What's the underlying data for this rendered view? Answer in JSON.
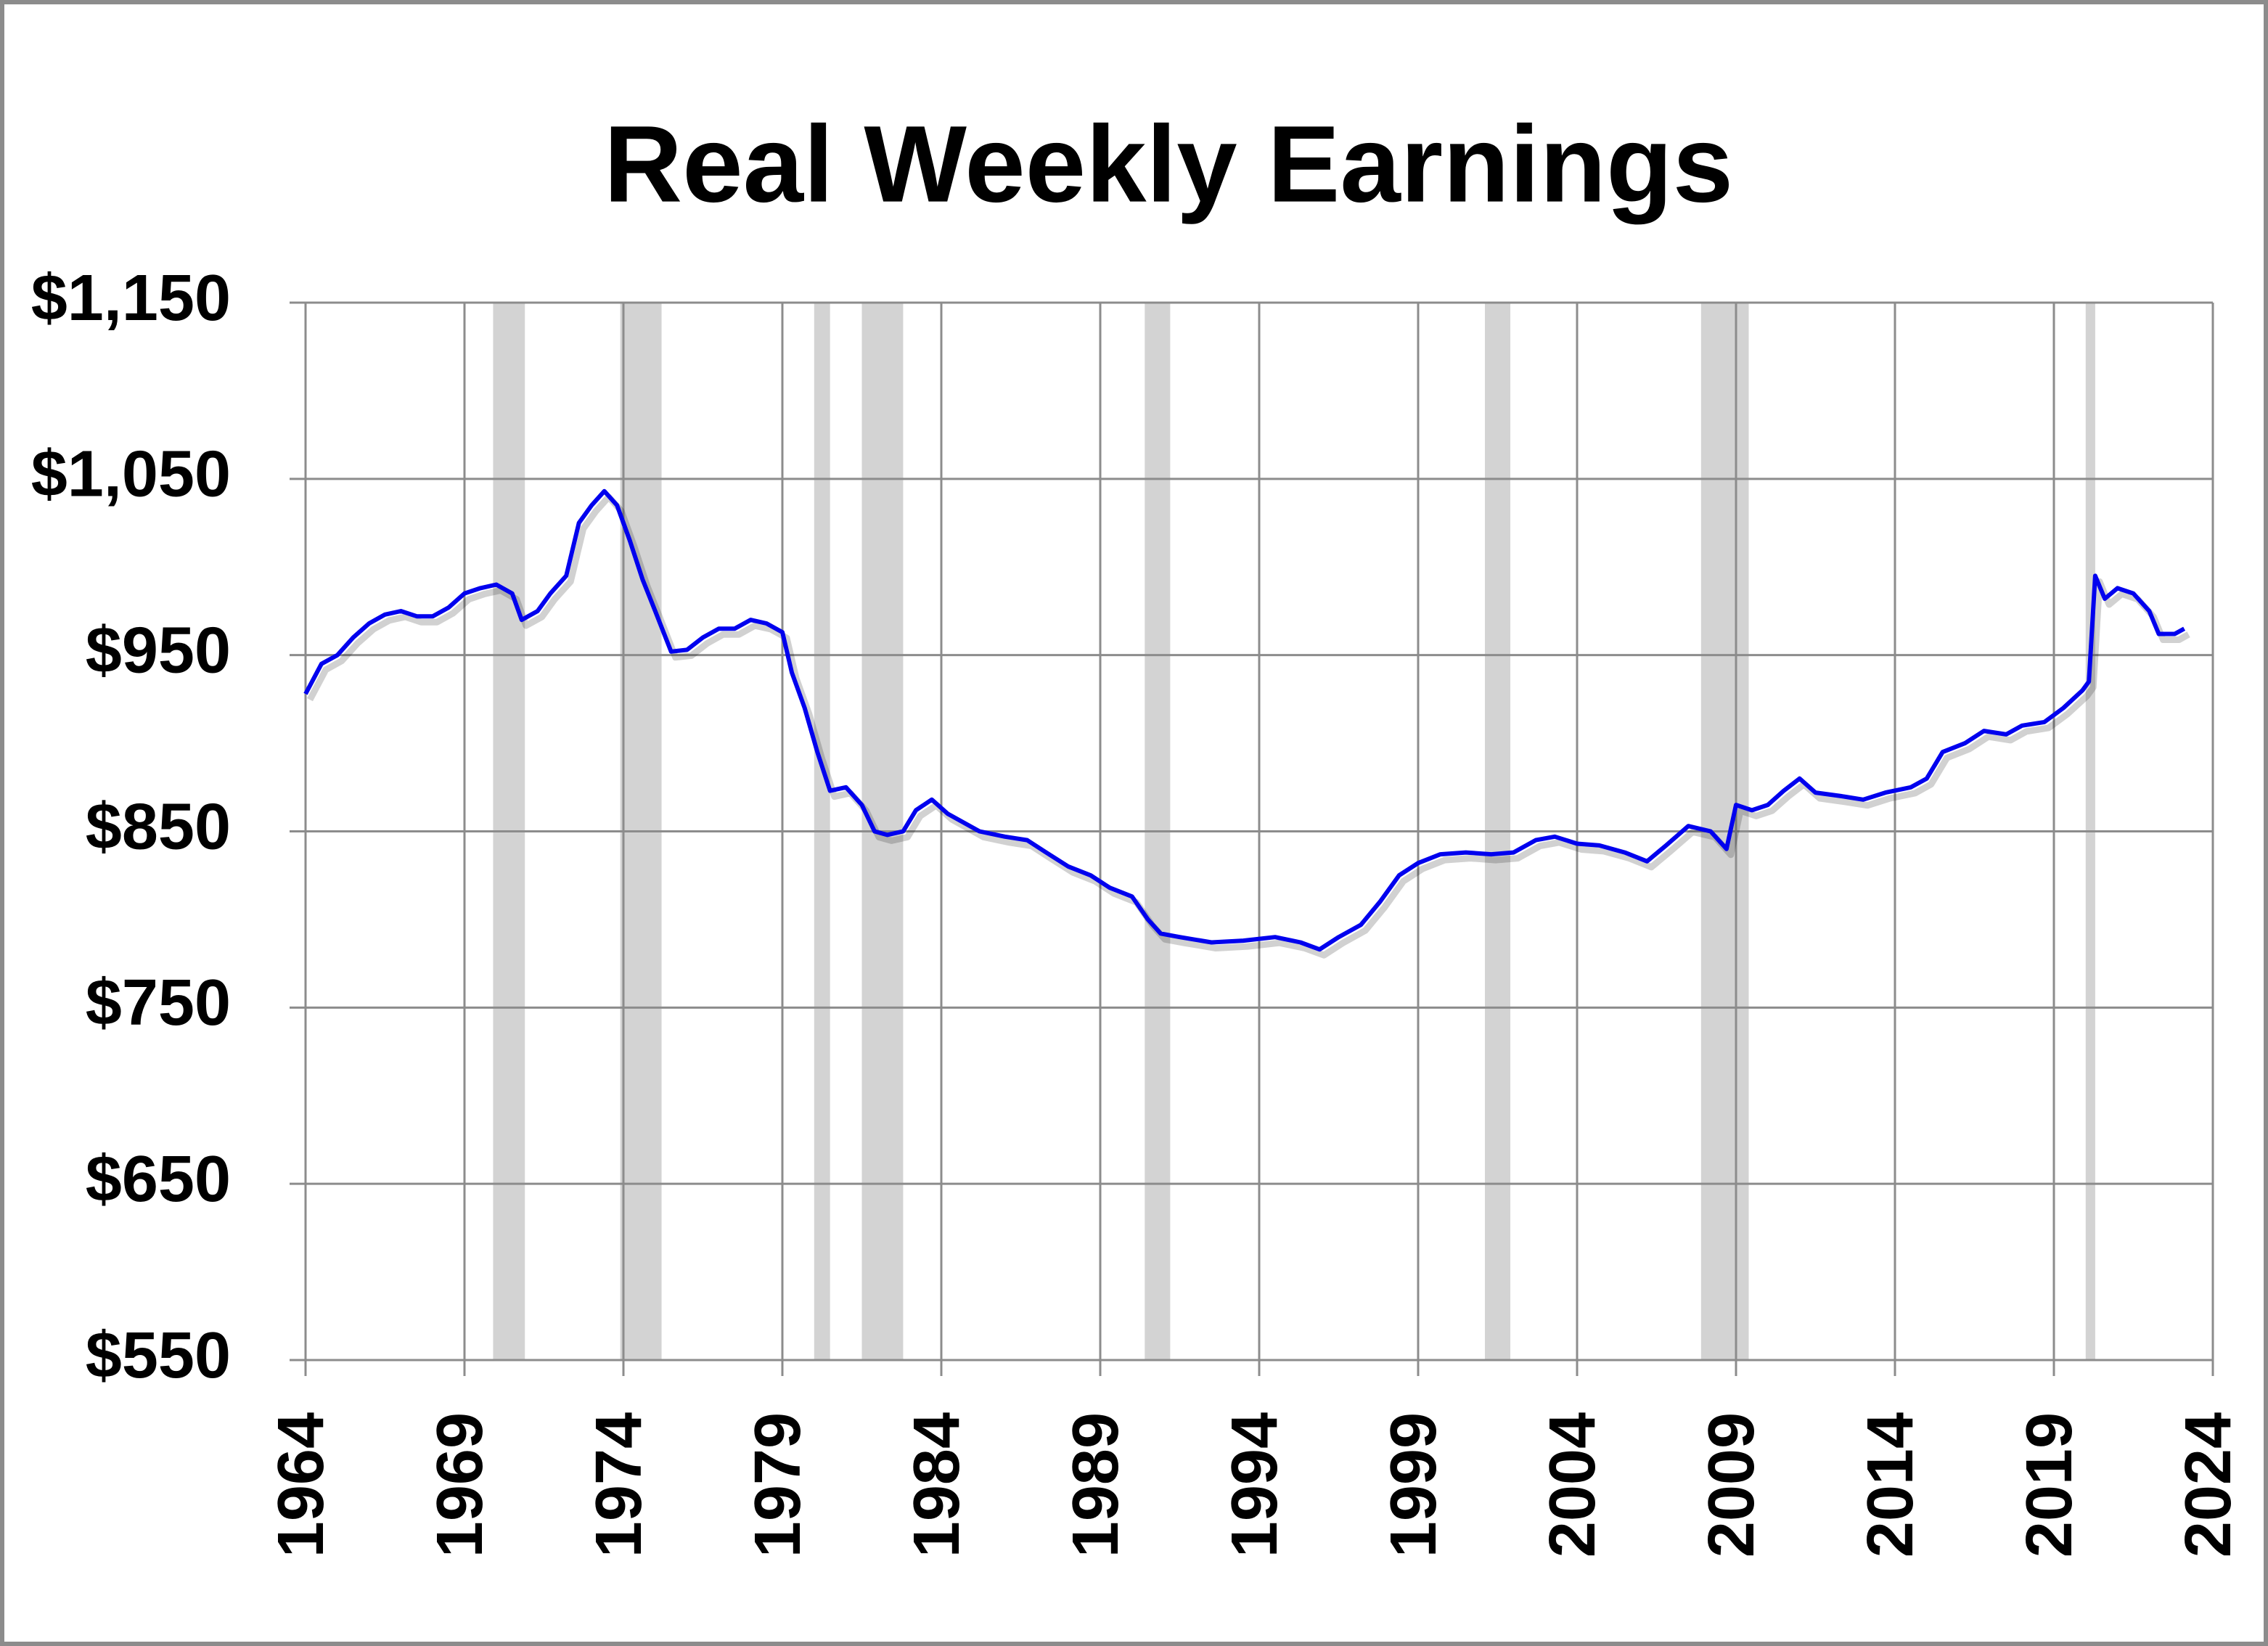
{
  "chart_data": {
    "type": "line",
    "title": "Real Weekly Earnings",
    "x": [
      1964.0,
      1964.5,
      1965.0,
      1965.5,
      1966.0,
      1966.5,
      1967.0,
      1967.5,
      1968.0,
      1968.5,
      1969.0,
      1969.5,
      1970.0,
      1970.5,
      1970.8,
      1971.3,
      1971.7,
      1972.2,
      1972.6,
      1973.0,
      1973.4,
      1973.8,
      1974.2,
      1974.6,
      1975.0,
      1975.5,
      1976.0,
      1976.5,
      1977.0,
      1977.5,
      1978.0,
      1978.5,
      1979.0,
      1979.3,
      1979.7,
      1980.1,
      1980.5,
      1981.0,
      1981.5,
      1981.9,
      1982.3,
      1982.8,
      1983.2,
      1983.7,
      1984.2,
      1984.7,
      1985.2,
      1986.0,
      1986.7,
      1987.3,
      1988.0,
      1988.7,
      1989.3,
      1990.0,
      1990.5,
      1990.9,
      1991.5,
      1992.5,
      1993.5,
      1994.5,
      1995.3,
      1995.9,
      1996.5,
      1997.2,
      1997.8,
      1998.4,
      1999.0,
      1999.7,
      2000.5,
      2001.3,
      2002.0,
      2002.7,
      2003.3,
      2004.0,
      2004.7,
      2005.5,
      2006.2,
      2006.8,
      2007.5,
      2008.2,
      2008.7,
      2009.0,
      2009.5,
      2010.0,
      2010.5,
      2011.0,
      2011.5,
      2012.3,
      2013.0,
      2013.7,
      2014.5,
      2015.0,
      2015.5,
      2016.2,
      2016.8,
      2017.5,
      2018.0,
      2018.7,
      2019.3,
      2019.9,
      2020.1,
      2020.3,
      2020.6,
      2021.0,
      2021.5,
      2022.0,
      2022.3,
      2022.8,
      2023.1
    ],
    "values": [
      928,
      945,
      950,
      960,
      968,
      973,
      975,
      972,
      972,
      977,
      985,
      988,
      990,
      985,
      970,
      975,
      985,
      995,
      1025,
      1035,
      1043,
      1035,
      1015,
      993,
      975,
      952,
      953,
      960,
      965,
      965,
      970,
      968,
      963,
      940,
      920,
      895,
      873,
      875,
      865,
      850,
      848,
      850,
      862,
      868,
      860,
      855,
      850,
      847,
      845,
      838,
      830,
      825,
      818,
      813,
      800,
      792,
      790,
      787,
      788,
      790,
      787,
      783,
      790,
      797,
      810,
      825,
      832,
      837,
      838,
      837,
      838,
      845,
      847,
      843,
      842,
      838,
      833,
      842,
      853,
      850,
      840,
      865,
      862,
      865,
      873,
      880,
      872,
      870,
      868,
      872,
      875,
      880,
      895,
      900,
      907,
      905,
      910,
      912,
      920,
      930,
      935,
      995,
      982,
      988,
      985,
      975,
      962,
      962,
      965
    ],
    "color": "#0000ee",
    "recessions": [
      [
        1969.9,
        1970.9
      ],
      [
        1973.9,
        1975.2
      ],
      [
        1980.0,
        1980.5
      ],
      [
        1981.5,
        1982.8
      ],
      [
        1990.4,
        1991.2
      ],
      [
        2001.1,
        2001.9
      ],
      [
        2007.9,
        2009.4
      ],
      [
        2020.0,
        2020.3
      ]
    ],
    "recession_color": "#d3d3d3",
    "xlim": [
      1964,
      2024
    ],
    "xticks": [
      1964,
      1969,
      1974,
      1979,
      1984,
      1989,
      1994,
      1999,
      2004,
      2009,
      2014,
      2019,
      2024
    ],
    "ylim": [
      550,
      1150
    ],
    "yticks": [
      {
        "value": 550,
        "label": "$550"
      },
      {
        "value": 650,
        "label": "$650"
      },
      {
        "value": 750,
        "label": "$750"
      },
      {
        "value": 850,
        "label": "$850"
      },
      {
        "value": 950,
        "label": "$950"
      },
      {
        "value": 1050,
        "label": "$1,050"
      },
      {
        "value": 1150,
        "label": "$1,150"
      }
    ],
    "grid": true
  }
}
